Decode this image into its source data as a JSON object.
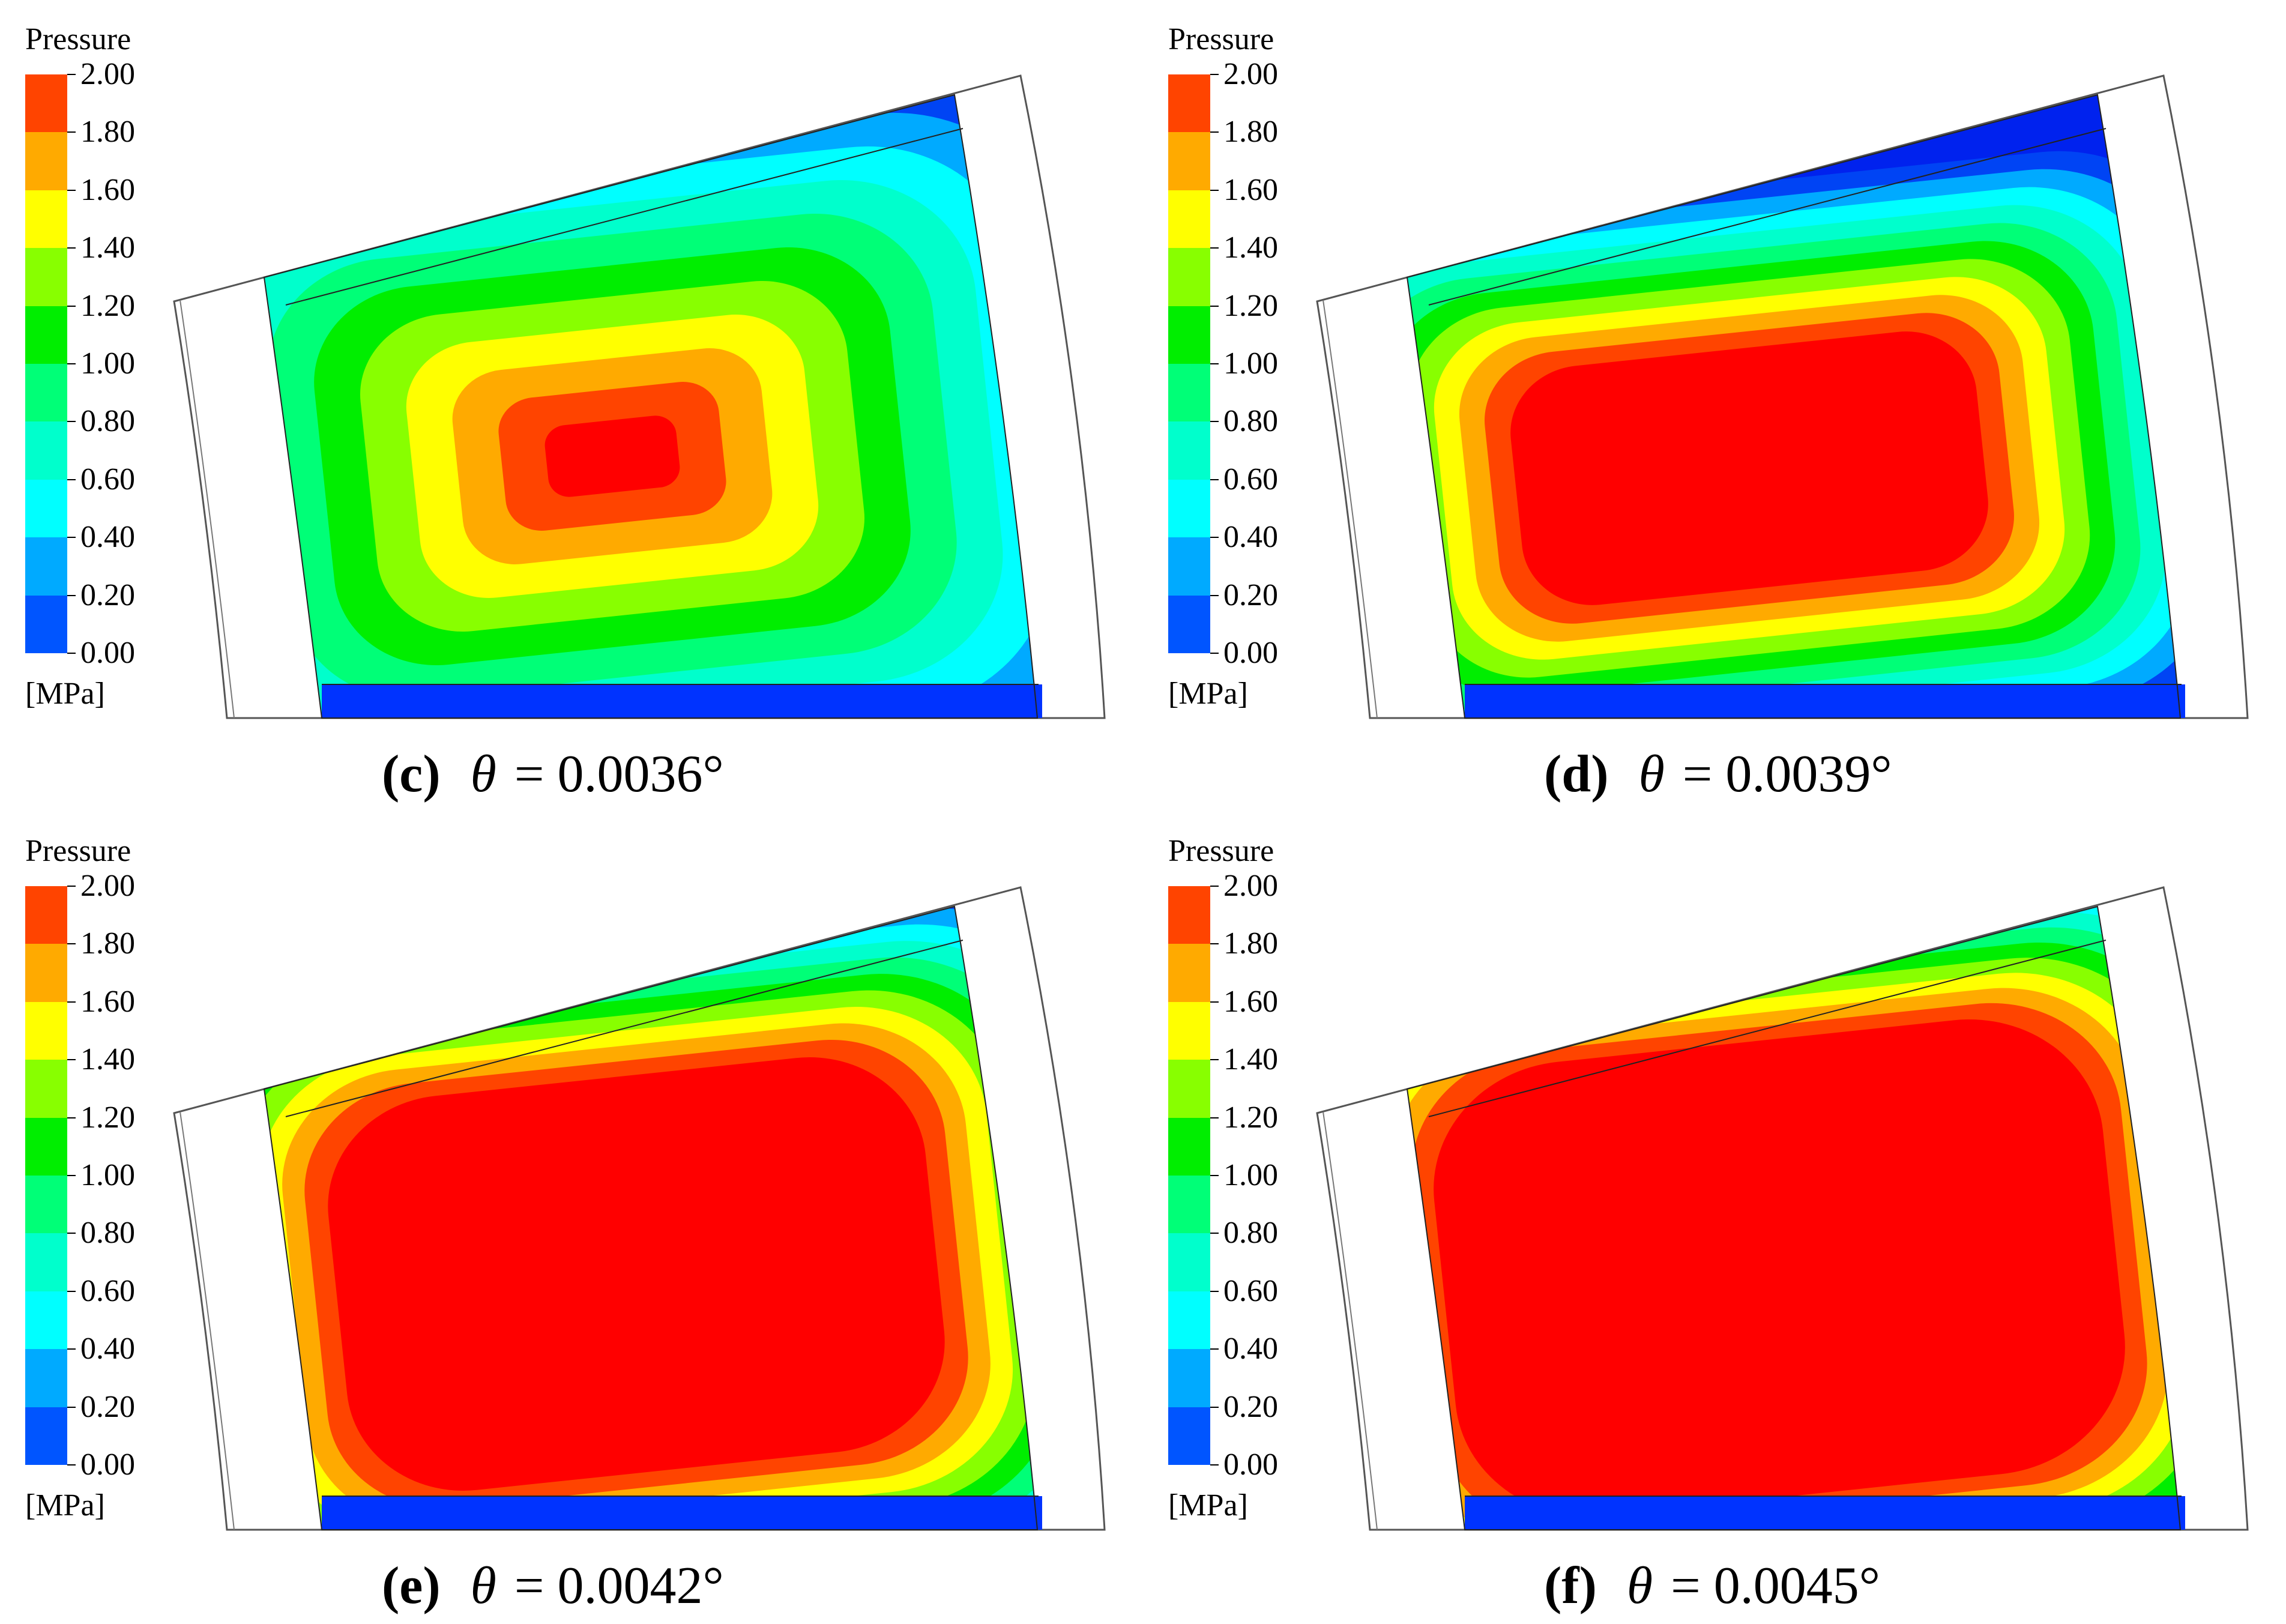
{
  "figure": {
    "legend": {
      "title": "Pressure",
      "unit": "[MPa]",
      "tick_labels": [
        "2.00",
        "1.80",
        "1.60",
        "1.40",
        "1.20",
        "1.00",
        "0.80",
        "0.60",
        "0.40",
        "0.20",
        "0.00"
      ],
      "colors": [
        "#ff4400",
        "#ffaa00",
        "#ffff00",
        "#88ff00",
        "#00ee00",
        "#00ff77",
        "#00ffcc",
        "#00ffff",
        "#00aaff",
        "#0055ff"
      ]
    },
    "panels": [
      {
        "letter": "(c)",
        "equation": "= 0.0036°"
      },
      {
        "letter": "(d)",
        "equation": "= 0.0039°"
      },
      {
        "letter": "(e)",
        "equation": "= 0.0042°"
      },
      {
        "letter": "(f)",
        "equation": "= 0.0045°"
      }
    ],
    "theta_symbol": "θ"
  },
  "chart_data": [
    {
      "type": "heatmap",
      "colorbar_title": "Pressure",
      "colorbar_unit": "[MPa]",
      "colorbar_range": [
        0.0,
        2.0
      ],
      "colorbar_levels": [
        0.0,
        0.2,
        0.4,
        0.6,
        0.8,
        1.0,
        1.2,
        1.4,
        1.6,
        1.8,
        2.0
      ],
      "caption": "(c) θ = 0.0036°",
      "peak_pressure_MPa": 2.0
    },
    {
      "type": "heatmap",
      "colorbar_title": "Pressure",
      "colorbar_unit": "[MPa]",
      "colorbar_range": [
        0.0,
        2.0
      ],
      "colorbar_levels": [
        0.0,
        0.2,
        0.4,
        0.6,
        0.8,
        1.0,
        1.2,
        1.4,
        1.6,
        1.8,
        2.0
      ],
      "caption": "(d) θ = 0.0039°",
      "peak_pressure_MPa": 2.0
    },
    {
      "type": "heatmap",
      "colorbar_title": "Pressure",
      "colorbar_unit": "[MPa]",
      "colorbar_range": [
        0.0,
        2.0
      ],
      "colorbar_levels": [
        0.0,
        0.2,
        0.4,
        0.6,
        0.8,
        1.0,
        1.2,
        1.4,
        1.6,
        1.8,
        2.0
      ],
      "caption": "(e) θ = 0.0042°",
      "peak_pressure_MPa": 2.0
    },
    {
      "type": "heatmap",
      "colorbar_title": "Pressure",
      "colorbar_unit": "[MPa]",
      "colorbar_range": [
        0.0,
        2.0
      ],
      "colorbar_levels": [
        0.0,
        0.2,
        0.4,
        0.6,
        0.8,
        1.0,
        1.2,
        1.4,
        1.6,
        1.8,
        2.0
      ],
      "caption": "(f) θ = 0.0045°",
      "peak_pressure_MPa": 2.0
    }
  ]
}
